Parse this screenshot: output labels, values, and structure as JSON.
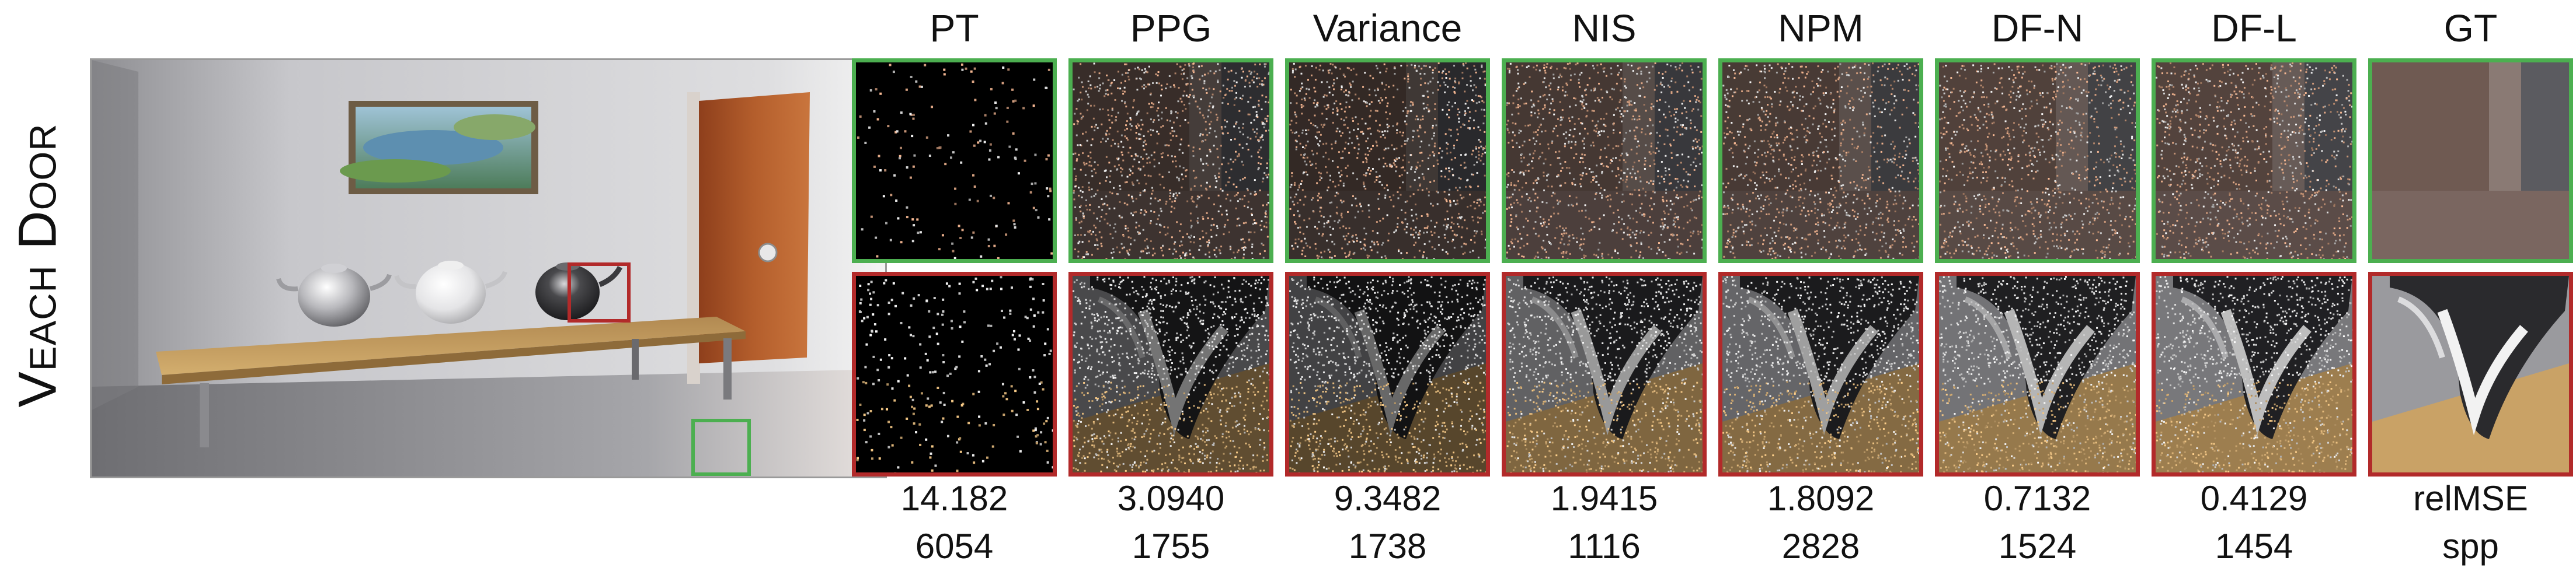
{
  "scene": {
    "name": "Veach Door"
  },
  "methods": [
    {
      "name": "PT",
      "relmse": "14.182",
      "spp": "6054",
      "noise": 0.02,
      "style": "sparse"
    },
    {
      "name": "PPG",
      "relmse": "3.0940",
      "spp": "1755",
      "noise": 0.3,
      "style": "noisy"
    },
    {
      "name": "Variance",
      "relmse": "9.3482",
      "spp": "1738",
      "noise": 0.22,
      "style": "noisy"
    },
    {
      "name": "NIS",
      "relmse": "1.9415",
      "spp": "1116",
      "noise": 0.55,
      "style": "noisy"
    },
    {
      "name": "NPM",
      "relmse": "1.8092",
      "spp": "2828",
      "noise": 0.6,
      "style": "noisy"
    },
    {
      "name": "DF-N",
      "relmse": "0.7132",
      "spp": "1524",
      "noise": 0.75,
      "style": "noisy"
    },
    {
      "name": "DF-L",
      "relmse": "0.4129",
      "spp": "1454",
      "noise": 0.8,
      "style": "noisy"
    },
    {
      "name": "GT",
      "relmse": "relMSE",
      "spp": "spp",
      "noise": 1.0,
      "style": "clean"
    }
  ],
  "colors": {
    "green_inset": "#4caf50",
    "red_inset": "#b22a2a",
    "wall": "#c9c9cc",
    "table": "#c8a266",
    "door": "#b05a2a"
  }
}
